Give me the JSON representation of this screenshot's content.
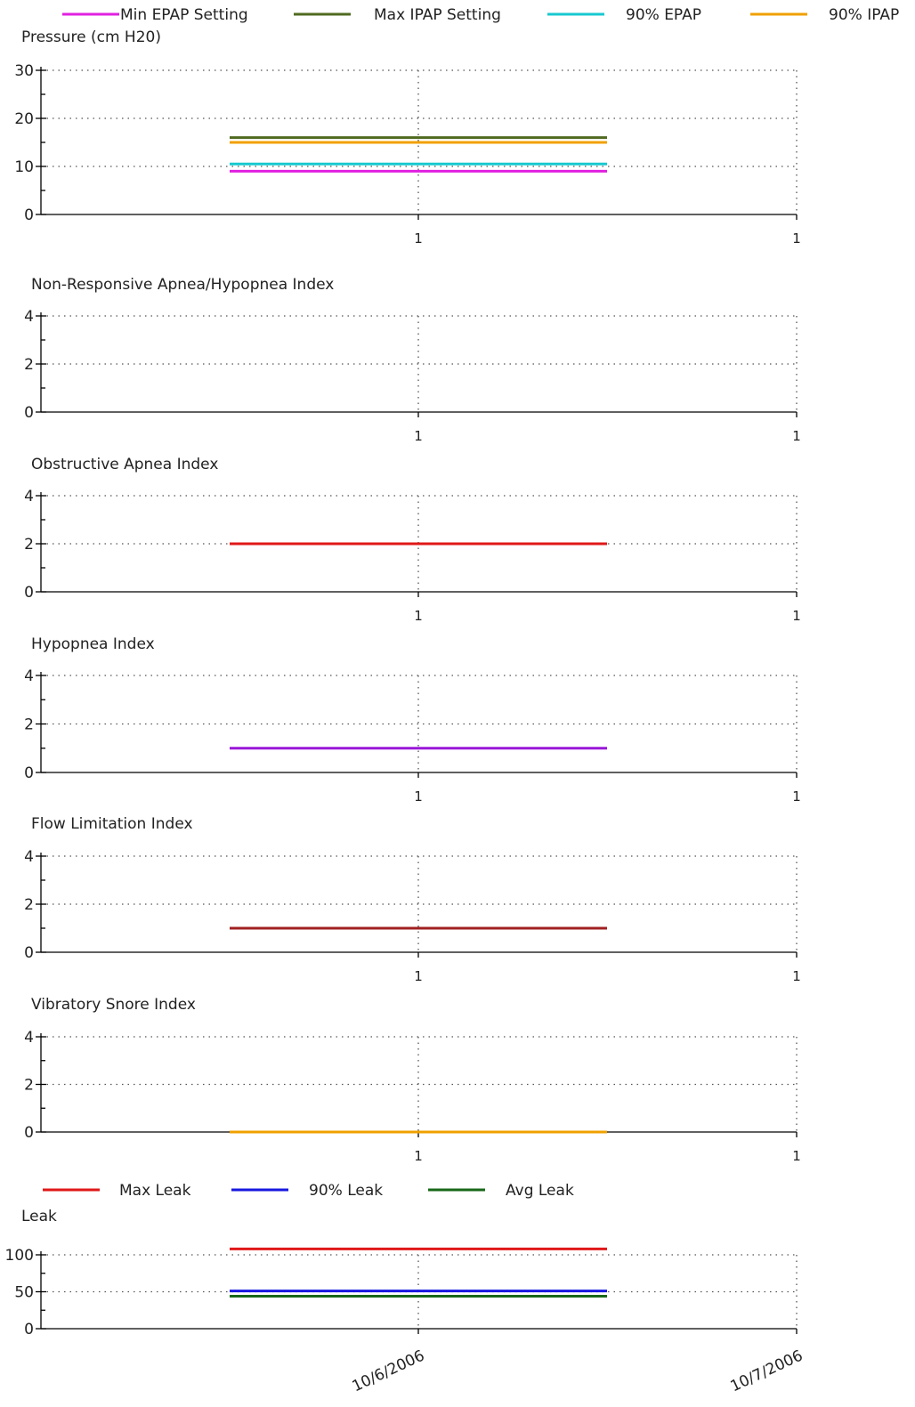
{
  "chart_data": [
    {
      "type": "line",
      "title": "",
      "ylabel": "Pressure (cm H20)",
      "xlabel": "",
      "ylim": [
        0,
        30
      ],
      "yticks": [
        0,
        10,
        20,
        30
      ],
      "xticks": [
        "1",
        "1"
      ],
      "grid": true,
      "legend": "top",
      "series": [
        {
          "name": "Min EPAP Setting",
          "color": "#e020e0",
          "value": 9
        },
        {
          "name": "Max IPAP Setting",
          "color": "#4f6a1f",
          "value": 16
        },
        {
          "name": "90% EPAP",
          "color": "#18c8d0",
          "value": 10.5
        },
        {
          "name": "90% IPAP",
          "color": "#f0a000",
          "value": 15
        }
      ]
    },
    {
      "type": "line",
      "title": "Non-Responsive Apnea/Hypopnea Index",
      "ylim": [
        0,
        4
      ],
      "yticks": [
        0,
        2,
        4
      ],
      "xticks": [
        "1",
        "1"
      ],
      "grid": true,
      "series": []
    },
    {
      "type": "line",
      "title": "Obstructive Apnea Index",
      "ylim": [
        0,
        4
      ],
      "yticks": [
        0,
        2,
        4
      ],
      "xticks": [
        "1",
        "1"
      ],
      "grid": true,
      "series": [
        {
          "color": "#e01818",
          "value": 2
        }
      ]
    },
    {
      "type": "line",
      "title": "Hypopnea Index",
      "ylim": [
        0,
        4
      ],
      "yticks": [
        0,
        2,
        4
      ],
      "xticks": [
        "1",
        "1"
      ],
      "grid": true,
      "series": [
        {
          "color": "#9a18d8",
          "value": 1
        }
      ]
    },
    {
      "type": "line",
      "title": "Flow Limitation Index",
      "ylim": [
        0,
        4
      ],
      "yticks": [
        0,
        2,
        4
      ],
      "xticks": [
        "1",
        "1"
      ],
      "grid": true,
      "series": [
        {
          "color": "#a02020",
          "value": 1
        }
      ]
    },
    {
      "type": "line",
      "title": "Vibratory Snore Index",
      "ylim": [
        0,
        4
      ],
      "yticks": [
        0,
        2,
        4
      ],
      "xticks": [
        "1",
        "1"
      ],
      "grid": true,
      "series": [
        {
          "color": "#f0a000",
          "value": 0
        }
      ]
    },
    {
      "type": "line",
      "title": "",
      "ylabel": "Leak",
      "xlabel": "",
      "ylim": [
        0,
        100
      ],
      "yticks": [
        0,
        50,
        100
      ],
      "xticks": [
        "10/6/2006",
        "10/7/2006"
      ],
      "grid": true,
      "legend": "top",
      "series": [
        {
          "name": "Max Leak",
          "color": "#e01818",
          "value": 108
        },
        {
          "name": "90% Leak",
          "color": "#1818e0",
          "value": 51
        },
        {
          "name": "Avg Leak",
          "color": "#186818",
          "value": 44
        }
      ]
    }
  ]
}
